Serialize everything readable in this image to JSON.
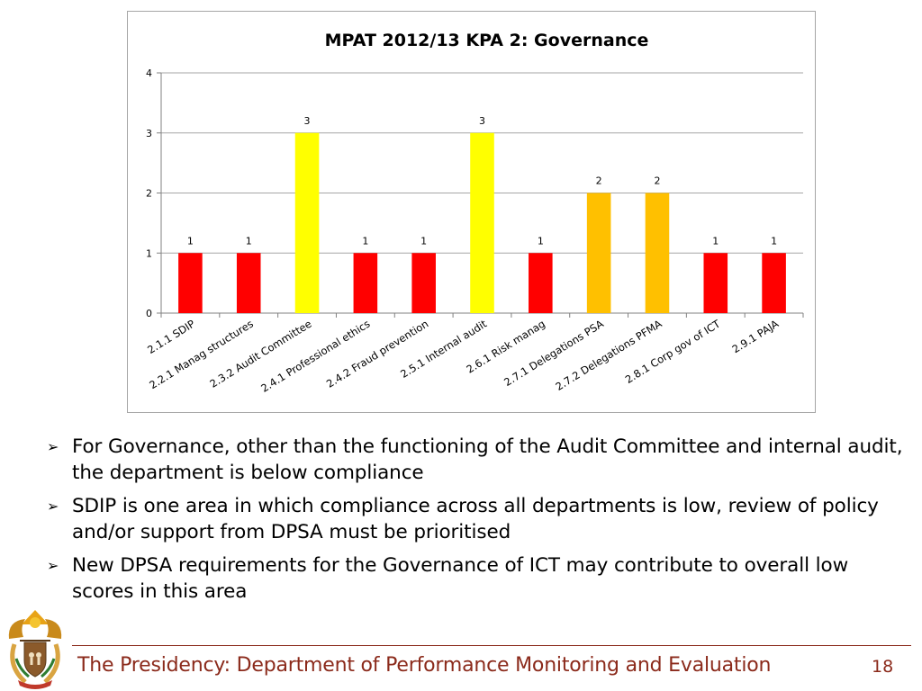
{
  "chart_data": {
    "type": "bar",
    "title": "MPAT 2012/13 KPA 2: Governance",
    "categories": [
      "2.1.1 SDIP",
      "2.2.1 Manag structures",
      "2.3.2 Audit Committee",
      "2.4.1 Professional ethics",
      "2.4.2 Fraud prevention",
      "2.5.1 Internal audit",
      "2.6.1 Risk manag",
      "2.7.1 Delegations PSA",
      "2.7.2 Delegations PFMA",
      "2.8.1 Corp gov of ICT",
      "2.9.1 PAJA"
    ],
    "values": [
      1,
      1,
      3,
      1,
      1,
      3,
      1,
      2,
      2,
      1,
      1
    ],
    "value_labels": [
      "1",
      "1",
      "3",
      "1",
      "1",
      "3",
      "1",
      "2",
      "2",
      "1",
      "1"
    ],
    "bar_colors": [
      "#ff0000",
      "#ff0000",
      "#ffff00",
      "#ff0000",
      "#ff0000",
      "#ffff00",
      "#ff0000",
      "#ffc000",
      "#ffc000",
      "#ff0000",
      "#ff0000"
    ],
    "ylim": [
      0,
      4
    ],
    "yticks": [
      0,
      1,
      2,
      3,
      4
    ],
    "ytick_labels": [
      "0",
      "1",
      "2",
      "3",
      "4"
    ],
    "xlabel": "",
    "ylabel": "",
    "grid": true,
    "legend": "none"
  },
  "bullets": [
    "For Governance, other than the functioning of the Audit Committee and internal audit, the department is below compliance",
    "SDIP is one area in which compliance across all departments is low, review of policy and/or support from DPSA must be prioritised",
    "New DPSA requirements for the Governance of ICT may contribute to overall low scores in this area"
  ],
  "bullet_glyph": "➢",
  "footer": {
    "text": "The Presidency: Department of Performance Monitoring and Evaluation",
    "page_number": "18"
  },
  "colors": {
    "footer": "#8b2a1b",
    "gridline": "#a6a6a6"
  }
}
